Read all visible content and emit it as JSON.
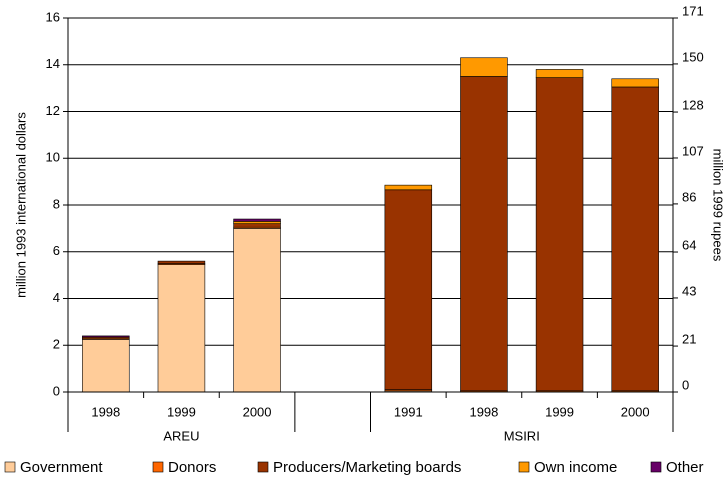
{
  "chart_data": {
    "type": "stacked_bar",
    "categories": [
      "1998",
      "1999",
      "2000",
      null,
      "1991",
      "1998",
      "1999",
      "2000"
    ],
    "groups": [
      "AREU",
      "MSIRI"
    ],
    "series": [
      {
        "name": "Government",
        "color": "#ffcc99",
        "values": [
          2.25,
          5.45,
          7.0,
          null,
          0.05,
          0,
          0,
          0
        ]
      },
      {
        "name": "Donors",
        "color": "#ff6600",
        "values": [
          0.05,
          0.05,
          0.05,
          null,
          0.05,
          0.05,
          0.05,
          0.05
        ]
      },
      {
        "name": "Producers/Marketing boards",
        "color": "#993300",
        "values": [
          0.05,
          0.1,
          0.15,
          null,
          8.55,
          13.45,
          13.4,
          13.0
        ]
      },
      {
        "name": "Own income",
        "color": "#ff9900",
        "values": [
          0,
          0,
          0.1,
          null,
          0.2,
          0.8,
          0.35,
          0.35
        ]
      },
      {
        "name": "Other",
        "color": "#660066",
        "values": [
          0.05,
          0,
          0.1,
          null,
          0,
          0,
          0,
          0
        ]
      }
    ],
    "ylabel": "million 1993 international dollars",
    "y2label": "million 1999 rupees",
    "ylim": [
      0,
      16
    ],
    "yticks": [
      0,
      2,
      4,
      6,
      8,
      10,
      12,
      14,
      16
    ],
    "y2lim": [
      0,
      171
    ],
    "y2ticks": [
      0,
      21,
      43,
      64,
      86,
      107,
      128,
      150,
      171
    ],
    "grid": true,
    "legend": "bottom"
  }
}
